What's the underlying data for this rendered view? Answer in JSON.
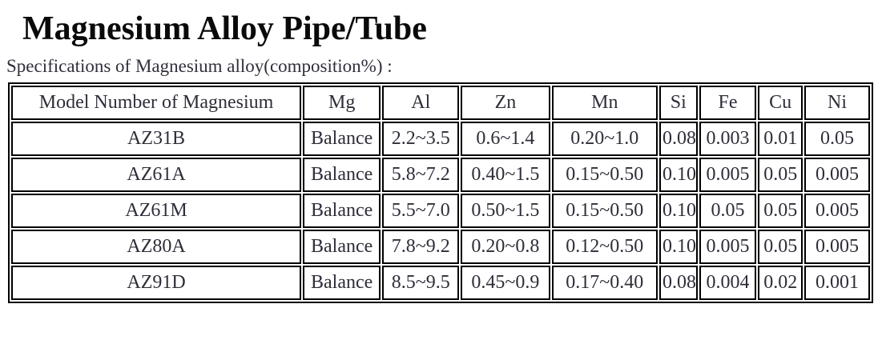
{
  "page": {
    "title": "Magnesium Alloy Pipe/Tube",
    "subtitle": "Specifications of Magnesium alloy(composition%) :"
  },
  "spec_table": {
    "columns": [
      "Model Number of Magnesium",
      "Mg",
      "Al",
      "Zn",
      "Mn",
      "Si",
      "Fe",
      "Cu",
      "Ni"
    ],
    "rows": [
      [
        "AZ31B",
        "Balance",
        "2.2~3.5",
        "0.6~1.4",
        "0.20~1.0",
        "0.08",
        "0.003",
        "0.01",
        "0.05"
      ],
      [
        "AZ61A",
        "Balance",
        "5.8~7.2",
        "0.40~1.5",
        "0.15~0.50",
        "0.10",
        "0.005",
        "0.05",
        "0.005"
      ],
      [
        "AZ61M",
        "Balance",
        "5.5~7.0",
        "0.50~1.5",
        "0.15~0.50",
        "0.10",
        "0.05",
        "0.05",
        "0.005"
      ],
      [
        "AZ80A",
        "Balance",
        "7.8~9.2",
        "0.20~0.8",
        "0.12~0.50",
        "0.10",
        "0.005",
        "0.05",
        "0.005"
      ],
      [
        "AZ91D",
        "Balance",
        "8.5~9.5",
        "0.45~0.9",
        "0.17~0.40",
        "0.08",
        "0.004",
        "0.02",
        "0.001"
      ]
    ]
  },
  "colors": {
    "background": "#ffffff",
    "title_text": "#0a0a0a",
    "body_text": "#2e2e3a",
    "table_border": "#000000"
  }
}
